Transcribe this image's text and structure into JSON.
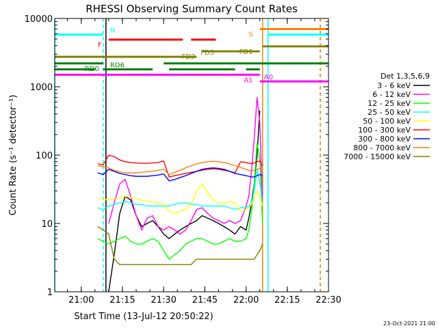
{
  "chart_data": {
    "type": "line",
    "title": "RHESSI Observing Summary Count Rates",
    "xlabel": "Start Time (13-Jul-12 20:50:22)",
    "ylabel": "Count Rate (s⁻¹ detector⁻¹)",
    "ylog": true,
    "ylim": [
      1,
      10000
    ],
    "xlim": [
      "20:50:22",
      "22:30:00"
    ],
    "x_ticks": [
      "21:00",
      "21:15",
      "21:30",
      "21:45",
      "22:00",
      "22:15",
      "22:30"
    ],
    "y_ticks": [
      "1",
      "10",
      "100",
      "1000",
      "10000"
    ],
    "legend_title": "Det 1,3,5,6,9",
    "legend_position": "right",
    "footer": "23-Oct-2021 21:00",
    "series": [
      {
        "name": "3 - 6 keV",
        "color": "#000000",
        "x": [
          "20:58",
          "20:59",
          "21:00",
          "21:02",
          "21:04",
          "21:06",
          "21:08",
          "21:10",
          "21:12",
          "21:14",
          "21:16",
          "21:18",
          "21:20",
          "21:22",
          "21:24",
          "21:26",
          "21:28",
          "21:30",
          "21:32",
          "21:34",
          "21:36",
          "21:38",
          "21:40",
          "21:42",
          "21:44",
          "21:46",
          "21:48",
          "21:50",
          "21:52",
          "21:54",
          "21:56",
          "21:58",
          "22:00",
          "22:01",
          "22:02",
          "22:03",
          "22:04",
          "22:05"
        ],
        "y": [
          null,
          null,
          null,
          null,
          null,
          null,
          null,
          1,
          3.5,
          14,
          25,
          22,
          13,
          9,
          10,
          11,
          9,
          7,
          6,
          7,
          8,
          9,
          10,
          11,
          13,
          12,
          11,
          10,
          9,
          8,
          7,
          9,
          8,
          12,
          20,
          40,
          100,
          450
        ]
      },
      {
        "name": "6 - 12 keV",
        "color": "#ff00ff",
        "x": [
          "20:58",
          "21:00",
          "21:02",
          "21:04",
          "21:06",
          "21:08",
          "21:10",
          "21:12",
          "21:14",
          "21:16",
          "21:18",
          "21:20",
          "21:22",
          "21:24",
          "21:26",
          "21:28",
          "21:30",
          "21:32",
          "21:34",
          "21:36",
          "21:38",
          "21:40",
          "21:42",
          "21:44",
          "21:46",
          "21:48",
          "21:50",
          "21:52",
          "21:54",
          "21:56",
          "21:58",
          "22:00",
          "22:01",
          "22:02",
          "22:03",
          "22:04",
          "22:05",
          "22:06"
        ],
        "y": [
          null,
          null,
          null,
          null,
          null,
          null,
          10,
          20,
          38,
          44,
          25,
          13,
          8,
          12,
          13,
          9,
          8,
          9,
          8,
          7,
          8,
          11,
          16,
          17,
          14,
          12,
          11,
          10,
          11,
          10,
          11,
          18,
          25,
          60,
          180,
          700,
          300,
          20
        ]
      },
      {
        "name": "12 - 25 keV",
        "color": "#00ff00",
        "x": [
          "20:58",
          "21:00",
          "21:02",
          "21:04",
          "21:06",
          "21:08",
          "21:10",
          "21:12",
          "21:14",
          "21:16",
          "21:18",
          "21:20",
          "21:22",
          "21:24",
          "21:26",
          "21:28",
          "21:30",
          "21:32",
          "21:34",
          "21:36",
          "21:38",
          "21:40",
          "21:42",
          "21:44",
          "21:46",
          "21:48",
          "21:50",
          "21:52",
          "21:54",
          "21:56",
          "21:58",
          "22:00",
          "22:01",
          "22:02",
          "22:03",
          "22:04",
          "22:05",
          "22:06"
        ],
        "y": [
          null,
          null,
          null,
          null,
          6,
          5.5,
          5,
          5.5,
          6,
          6.5,
          5.5,
          5,
          5,
          5.5,
          6,
          5.5,
          4,
          3,
          3.5,
          4,
          5,
          5.5,
          6,
          6,
          5.5,
          5,
          5,
          5.5,
          6,
          5.5,
          5.5,
          6,
          8,
          15,
          40,
          150,
          90,
          10
        ]
      },
      {
        "name": "25 - 50 keV",
        "color": "#00ffff",
        "x": [
          "20:58",
          "21:00",
          "21:02",
          "21:04",
          "21:06",
          "21:08",
          "21:10",
          "21:12",
          "21:14",
          "21:16",
          "21:18",
          "21:20",
          "21:22",
          "21:24",
          "21:26",
          "21:28",
          "21:30",
          "21:32",
          "21:34",
          "21:36",
          "21:38",
          "21:40",
          "21:42",
          "21:44",
          "21:46",
          "21:48",
          "21:50",
          "21:52",
          "21:54",
          "21:56",
          "21:58",
          "22:00",
          "22:01",
          "22:02",
          "22:03",
          "22:04",
          "22:05",
          "22:06"
        ],
        "y": [
          null,
          null,
          null,
          null,
          17,
          16,
          18,
          19,
          20,
          21,
          20,
          19,
          19,
          18,
          18,
          18,
          18,
          18,
          19,
          20,
          20,
          19,
          19,
          18,
          18,
          18,
          18,
          18,
          17,
          16,
          17,
          17,
          18,
          20,
          30,
          60,
          40,
          20
        ]
      },
      {
        "name": "50 - 100 keV",
        "color": "#ffff00",
        "x": [
          "20:58",
          "21:00",
          "21:02",
          "21:04",
          "21:06",
          "21:08",
          "21:10",
          "21:12",
          "21:14",
          "21:16",
          "21:18",
          "21:20",
          "21:22",
          "21:24",
          "21:26",
          "21:28",
          "21:30",
          "21:32",
          "21:34",
          "21:36",
          "21:38",
          "21:40",
          "21:42",
          "21:44",
          "21:46",
          "21:48",
          "21:50",
          "21:52",
          "21:54",
          "21:56",
          "21:58",
          "22:00",
          "22:01",
          "22:02",
          "22:03",
          "22:04",
          "22:05",
          "22:06"
        ],
        "y": [
          null,
          null,
          null,
          null,
          24,
          23,
          22,
          23,
          24,
          25,
          24,
          23,
          22,
          21,
          21,
          20,
          19,
          15,
          14,
          15,
          16,
          19,
          30,
          38,
          28,
          22,
          20,
          20,
          21,
          20,
          15,
          16,
          17,
          19,
          23,
          30,
          25,
          18
        ]
      },
      {
        "name": "100 - 300 keV",
        "color": "#ff0000",
        "x": [
          "20:58",
          "21:00",
          "21:02",
          "21:04",
          "21:06",
          "21:08",
          "21:10",
          "21:12",
          "21:14",
          "21:16",
          "21:18",
          "21:20",
          "21:22",
          "21:24",
          "21:26",
          "21:28",
          "21:30",
          "21:32",
          "21:34",
          "21:36",
          "21:38",
          "21:40",
          "21:42",
          "21:44",
          "21:46",
          "21:48",
          "21:50",
          "21:52",
          "21:54",
          "21:56",
          "21:58",
          "22:00",
          "22:01",
          "22:02",
          "22:03",
          "22:04",
          "22:05",
          "22:06"
        ],
        "y": [
          null,
          null,
          null,
          null,
          75,
          72,
          100,
          95,
          85,
          80,
          78,
          77,
          76,
          76,
          77,
          78,
          82,
          48,
          50,
          52,
          54,
          56,
          58,
          60,
          62,
          63,
          62,
          60,
          58,
          55,
          80,
          78,
          76,
          75,
          77,
          80,
          82,
          70
        ]
      },
      {
        "name": "300 - 800 keV",
        "color": "#0000ff",
        "x": [
          "20:58",
          "21:00",
          "21:02",
          "21:04",
          "21:06",
          "21:08",
          "21:10",
          "21:12",
          "21:14",
          "21:16",
          "21:18",
          "21:20",
          "21:22",
          "21:24",
          "21:26",
          "21:28",
          "21:30",
          "21:32",
          "21:34",
          "21:36",
          "21:38",
          "21:40",
          "21:42",
          "21:44",
          "21:46",
          "21:48",
          "21:50",
          "21:52",
          "21:54",
          "21:56",
          "21:58",
          "22:00",
          "22:01",
          "22:02",
          "22:03",
          "22:04",
          "22:05",
          "22:06"
        ],
        "y": [
          null,
          null,
          null,
          null,
          55,
          52,
          62,
          58,
          54,
          52,
          50,
          49,
          49,
          49,
          50,
          51,
          53,
          42,
          44,
          47,
          50,
          54,
          58,
          62,
          64,
          65,
          64,
          62,
          58,
          54,
          52,
          50,
          49,
          48,
          48,
          50,
          52,
          50
        ]
      },
      {
        "name": "800 - 7000 keV",
        "color": "#ff8000",
        "x": [
          "20:58",
          "21:00",
          "21:02",
          "21:04",
          "21:06",
          "21:08",
          "21:10",
          "21:12",
          "21:14",
          "21:16",
          "21:18",
          "21:20",
          "21:22",
          "21:24",
          "21:26",
          "21:28",
          "21:30",
          "21:32",
          "21:34",
          "21:36",
          "21:38",
          "21:40",
          "21:42",
          "21:44",
          "21:46",
          "21:48",
          "21:50",
          "21:52",
          "21:54",
          "21:56",
          "21:58",
          "22:00",
          "22:01",
          "22:02",
          "22:03",
          "22:04",
          "22:05",
          "22:06"
        ],
        "y": [
          null,
          null,
          null,
          null,
          70,
          68,
          65,
          60,
          57,
          55,
          55,
          55,
          56,
          57,
          58,
          60,
          62,
          52,
          56,
          60,
          65,
          70,
          74,
          78,
          80,
          81,
          80,
          78,
          74,
          70,
          66,
          62,
          60,
          59,
          60,
          62,
          64,
          62
        ]
      },
      {
        "name": "7000 - 15000 keV",
        "color": "#808000",
        "x": [
          "20:58",
          "21:00",
          "21:02",
          "21:04",
          "21:06",
          "21:08",
          "21:10",
          "21:12",
          "21:14",
          "21:16",
          "21:18",
          "21:20",
          "21:22",
          "21:24",
          "21:26",
          "21:28",
          "21:30",
          "21:32",
          "21:34",
          "21:36",
          "21:38",
          "21:40",
          "21:42",
          "21:44",
          "21:46",
          "21:48",
          "21:50",
          "21:52",
          "21:54",
          "21:56",
          "21:58",
          "22:00",
          "22:01",
          "22:02",
          "22:03",
          "22:04",
          "22:05",
          "22:06"
        ],
        "y": [
          null,
          null,
          null,
          null,
          9,
          8,
          7,
          3,
          2.5,
          2.5,
          2.5,
          2.5,
          2.5,
          2.5,
          2.5,
          2.5,
          2.5,
          2.5,
          2.5,
          2.5,
          2.5,
          2.5,
          3,
          3,
          3,
          3,
          3,
          3,
          3,
          3,
          3,
          3,
          3,
          3,
          3,
          3.5,
          4,
          5
        ]
      }
    ],
    "state_bars": [
      {
        "label": "N",
        "color": "#00ffff",
        "level": 5800,
        "segments": [
          [
            "20:50:22",
            "21:08"
          ],
          [
            "22:08",
            "22:30:00"
          ]
        ],
        "label_side": "right",
        "label_time": "21:10"
      },
      {
        "label": "F",
        "color": "#ff0000",
        "level": 4900,
        "segments": [
          [
            "21:10",
            "21:37"
          ],
          [
            "21:40",
            "21:49"
          ]
        ],
        "label_side": "left",
        "label_time": "21:08"
      },
      {
        "label": "S",
        "color": "#ff8000",
        "level": 7000,
        "segments": [
          [
            "22:05",
            "22:30:00"
          ]
        ],
        "label_side": "left",
        "label_time": "22:03"
      },
      {
        "label": "FD1",
        "color": "#808000",
        "level": 3900,
        "segments": [
          [
            "22:06",
            "22:30:00"
          ]
        ],
        "label_side": "left",
        "label_time": "22:03"
      },
      {
        "label": "FD2",
        "color": "#808000",
        "level": 3300,
        "segments": [
          [
            "21:44",
            "22:05"
          ]
        ],
        "label_side": "left",
        "label_time": "21:42"
      },
      {
        "label": "FD3",
        "color": "#808000",
        "level": 2750,
        "segments": [
          [
            "20:50:22",
            "21:42"
          ]
        ],
        "label_side": "right",
        "label_time": "21:43"
      },
      {
        "label": "RD0",
        "color": "#008000",
        "level": 2200,
        "segments": [
          [
            "20:50:22",
            "21:08"
          ],
          [
            "21:30",
            "22:30:00"
          ]
        ],
        "label_side": "left",
        "label_time": "21:07"
      },
      {
        "label": "RD6",
        "color": "#008000",
        "level": 1800,
        "segments": [
          [
            "20:50:22",
            "21:05"
          ],
          [
            "21:08",
            "21:26"
          ],
          [
            "21:32",
            "21:56"
          ],
          [
            "22:00",
            "22:05"
          ]
        ],
        "label_side": "right",
        "label_time": "21:10"
      },
      {
        "label": "A1",
        "color": "#ff00ff",
        "level": 1500,
        "segments": [
          [
            "20:50:22",
            "22:05"
          ]
        ],
        "label_side": "left",
        "label_time": "22:03"
      },
      {
        "label": "A0",
        "color": "#ff00ff",
        "level": 1200,
        "segments": [
          [
            "22:05",
            "22:30:00"
          ]
        ],
        "label_side": "right",
        "label_time": "22:06"
      }
    ],
    "vertical_lines": [
      {
        "color": "#00ffff",
        "time": "20:50:22",
        "style": "solid"
      },
      {
        "color": "#00ffff",
        "time": "21:08",
        "style": "dashed"
      },
      {
        "color": "#00ffff",
        "time": "22:08",
        "style": "solid"
      },
      {
        "color": "#00ffff",
        "time": "22:27",
        "style": "dashed"
      },
      {
        "color": "#ff8000",
        "time": "22:06",
        "style": "solid"
      },
      {
        "color": "#ff8000",
        "time": "22:27",
        "style": "dashed"
      },
      {
        "color": "#000000",
        "time": "21:09",
        "style": "solid"
      }
    ]
  }
}
